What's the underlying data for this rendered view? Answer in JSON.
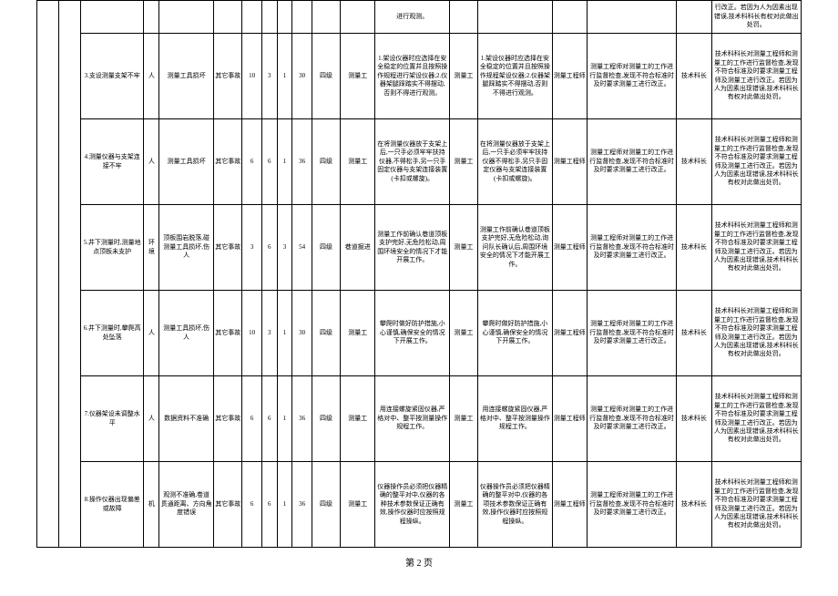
{
  "footer": "第 2 页",
  "rows": [
    {
      "partial": true,
      "c12": "进行观测。",
      "c18": "行改正。若因为人为因素出现错误,技术科科长有权对此做出处罚。"
    },
    {
      "risk": "3.支设测量支架不牢",
      "cat": "人",
      "cause": "测量工具损坏",
      "type": "其它事故",
      "n1": "10",
      "n2": "3",
      "n3": "1",
      "n4": "30",
      "level": "四级",
      "resp1": "测量工",
      "meas1": "1.架设仪器时应选择在安全稳定的位置并且按照操作规程进行架设仪器;2.仪器架腿踩踏实不得摆动,否则不得进行观测。",
      "resp2": "测量工",
      "meas2": "1.架设仪器时应选择在安全稳定的位置并且按照操作规程架设仪器;2.仪器架腿踩踏实不得摆动,否则不得进行观测。",
      "unit1": "测量工程师",
      "meas3": "测量工程师对测量工的工作进行监督检查,发现不符合标准时及时要求测量工进行改正。",
      "unit2": "技术科长",
      "meas4": "技术科科长对测量工程师和测量工的工作进行监督检查,发现不符合标准及时要求测量工程师及测量工进行改正。若因为人为因素出现错误,技术科科长有权对此做出处罚。"
    },
    {
      "risk": "4.测量仪器与支架连接不牢",
      "cat": "人",
      "cause": "测量工具损坏",
      "type": "其它事故",
      "n1": "6",
      "n2": "6",
      "n3": "1",
      "n4": "36",
      "level": "四级",
      "resp1": "测量工",
      "meas1": "在将测量仪器放于支架上后,一只手必须牢牢扶持仪器,不得松手,另一只手固定仪器与支架连接装置(卡扣或螺旋)。",
      "resp2": "测量工",
      "meas2": "在将测量仪器放于支架上后,一只手必须牢牢扶持仪器不得松手,另只手固定仪器与支架连接装置(卡扣或螺旋)。",
      "unit1": "测量工程师",
      "meas3": "测量工程师对测量工的工作进行监督检查,发现不符合标准时及时要求测量工进行改正。",
      "unit2": "技术科长",
      "meas4": "技术科科长对测量工程师和测量工的工作进行监督检查,发现不符合标准及时要求测量工程师及测量工进行改正。若因为人为因素出现错误,技术科科长有权对此做出处罚。"
    },
    {
      "risk": "5.井下测量时,测量地点顶板未支护",
      "cat": "环境",
      "cause": "顶板围岩脱落,碰测量工具损坏,伤人",
      "type": "其它事故",
      "n1": "3",
      "n2": "6",
      "n3": "3",
      "n4": "54",
      "level": "四级",
      "resp1": "巷道掘进",
      "meas1": "测量工作前确认巷道顶板支护完好,无危险松动,周围环境安全的情况下才能开展工作。",
      "resp2": "测量工",
      "meas2": "测量工作前确认巷道顶板支护完好,无危险松动,询问队长确认后,周围环境安全的情况下才能开展工作。",
      "unit1": "测量工程师",
      "meas3": "测量工程师对测量工的工作进行监督检查,发现不符合标准时及时要求测量工进行改正。",
      "unit2": "技术科长",
      "meas4": "技术科科长对测量工程师和测量工的工作进行监督检查,发现不符合标准及时要求测量工程师及测量工进行改正。若因为人为因素出现错误,技术科科长有权对此做出处罚。"
    },
    {
      "risk": "6.井下测量时,攀爬高处坠落",
      "cat": "人",
      "cause": "测量工具损坏,伤人",
      "type": "其它事故",
      "n1": "10",
      "n2": "3",
      "n3": "1",
      "n4": "30",
      "level": "四级",
      "resp1": "测量工",
      "meas1": "攀爬时做好防护措施,小心谨慎,确保安全的情况下开展工作。",
      "resp2": "测量工",
      "meas2": "攀爬时做好防护措施,小心谨慎,确保安全的情况下开展工作。",
      "unit1": "测量工程师",
      "meas3": "测量工程师对测量工的工作进行监督检查,发现不符合标准时及时要求测量工进行改正。",
      "unit2": "技术科长",
      "meas4": "技术科科长对测量工程师和测量工的工作进行监督检查,发现不符合标准及时要求测量工程师及测量工进行改正。若因为人为因素出现错误,技术科科长有权对此做出处罚。"
    },
    {
      "risk": "7.仪器架设未调整水平",
      "cat": "人",
      "cause": "数据资料不准确",
      "type": "其它事故",
      "n1": "6",
      "n2": "6",
      "n3": "1",
      "n4": "36",
      "level": "四级",
      "resp1": "测量工",
      "meas1": "用连接螺旋紧固仪器,严格对中、整平按测量操作规程工作。",
      "resp2": "测量工",
      "meas2": "用连接螺旋紧固仪器,严格对中、整平按测量操作规程工作。",
      "unit1": "测量工程师",
      "meas3": "测量工程师对测量工的工作进行监督检查,发现不符合标准时及时要求测量工进行改正。",
      "unit2": "技术科长",
      "meas4": "技术科科长对测量工程师和测量工的工作进行监督检查,发现不符合标准及时要求测量工程师及测量工进行改正。若因为人为因素出现错误,技术科科长有权对此做出处罚。"
    },
    {
      "risk": "8.操作仪器出现偏差或故障",
      "cat": "机",
      "cause": "观测不准确,卷道贯通距离、方向角度错误",
      "type": "其它事故",
      "n1": "6",
      "n2": "6",
      "n3": "1",
      "n4": "36",
      "level": "四级",
      "resp1": "测量工",
      "meas1": "仪器操作员必须把仪器精确的整平对中,仪器的各种技术参数保证正确有效,操作仪器时应按照规程操纵。",
      "resp2": "测量工",
      "meas2": "仪器操作员必须把仪器精确的整平对中,仪器的各项技术参数保证正确有效,操作仪器时应按照规程操纵。",
      "unit1": "测量工程师",
      "meas3": "测量工程师对测量工的工作进行监督检查,发现不符合标准时及时要求测量工进行改正。",
      "unit2": "技术科长",
      "meas4": "技术科科长对测量工程师和测量工的工作进行监督检查,发现不符合标准及时要求测量工程师及测量工进行改正。若因为人为因素出现错误,技术科科长有权对此做出处罚。"
    }
  ]
}
